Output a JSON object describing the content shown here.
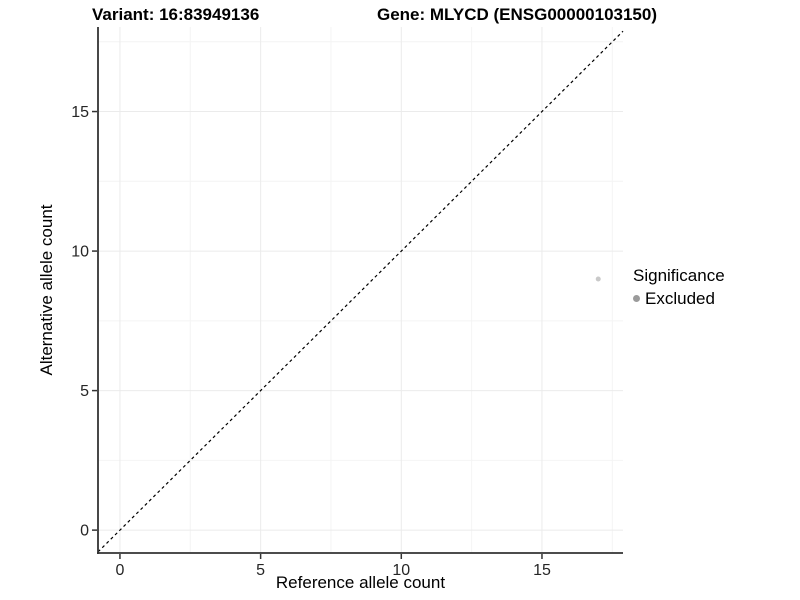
{
  "chart_data": {
    "type": "scatter",
    "title_left": "Variant: 16:83949136",
    "title_right": "Gene: MLYCD (ENSG00000103150)",
    "xlabel": "Reference allele count",
    "ylabel": "Alternative allele count",
    "xlim": [
      -0.78,
      17.88
    ],
    "ylim": [
      -0.82,
      18.03
    ],
    "x_ticks": [
      0,
      5,
      10,
      15
    ],
    "y_ticks": [
      0,
      5,
      10,
      15
    ],
    "minor_step": 2.5,
    "grid": true,
    "legend_position": "right",
    "points": [
      {
        "x": 17,
        "y": 9,
        "series": "Excluded"
      }
    ],
    "identity_line": {
      "style": "dashed",
      "slope": 1,
      "intercept": 0
    },
    "legend": {
      "title": "Significance",
      "items": [
        {
          "label": "Excluded",
          "color": "#9b9b9b"
        }
      ]
    },
    "colors": {
      "point": "#c9c9c9",
      "legend_point": "#9b9b9b",
      "axis_line": "#333333",
      "tick_mark": "#333333",
      "tick_label": "#262626",
      "grid_major": "#ebebeb",
      "grid_minor": "#f4f4f4",
      "dashed_line": "#000000",
      "background": "#ffffff"
    }
  }
}
